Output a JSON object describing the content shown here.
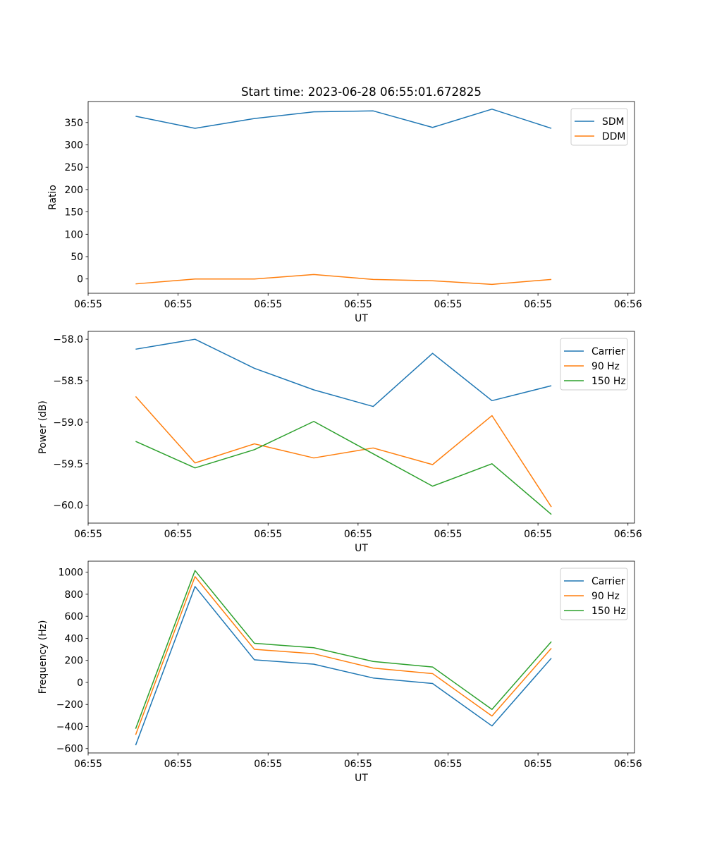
{
  "chart_data": [
    {
      "type": "line",
      "title": "Start time: 2023-06-28 06:55:01.672825",
      "xlabel": "UT",
      "ylabel": "Ratio",
      "x": [
        1,
        2,
        3,
        4,
        5,
        6,
        7,
        8
      ],
      "xlim": [
        0.2,
        9.4
      ],
      "xtick_positions": [
        0.2,
        1.715,
        3.23,
        4.745,
        6.26,
        7.775,
        9.29
      ],
      "xtick_labels": [
        "06:55",
        "06:55",
        "06:55",
        "06:55",
        "06:55",
        "06:55",
        "06:56"
      ],
      "ylim": [
        -32,
        397
      ],
      "yticks": [
        0,
        50,
        100,
        150,
        200,
        250,
        300,
        350
      ],
      "grid": false,
      "legend_position": "top-right",
      "series": [
        {
          "name": "SDM",
          "color": "#1f77b4",
          "values": [
            364,
            337,
            359,
            374,
            376,
            339,
            380,
            337
          ]
        },
        {
          "name": "DDM",
          "color": "#ff7f0e",
          "values": [
            -11,
            0,
            0,
            10,
            -1,
            -4,
            -12,
            -1
          ]
        }
      ]
    },
    {
      "type": "line",
      "title": "",
      "xlabel": "UT",
      "ylabel": "Power (dB)",
      "x": [
        1,
        2,
        3,
        4,
        5,
        6,
        7,
        8
      ],
      "xlim": [
        0.2,
        9.4
      ],
      "xtick_positions": [
        0.2,
        1.715,
        3.23,
        4.745,
        6.26,
        7.775,
        9.29
      ],
      "xtick_labels": [
        "06:55",
        "06:55",
        "06:55",
        "06:55",
        "06:55",
        "06:55",
        "06:56"
      ],
      "ylim": [
        -60.215,
        -57.905
      ],
      "yticks": [
        -60.0,
        -59.5,
        -59.0,
        -58.5,
        -58.0
      ],
      "ytick_labels": [
        "−60.0",
        "−59.5",
        "−59.0",
        "−58.5",
        "−58.0"
      ],
      "grid": false,
      "legend_position": "top-right",
      "series": [
        {
          "name": "Carrier",
          "color": "#1f77b4",
          "values": [
            -58.12,
            -58.0,
            -58.35,
            -58.61,
            -58.81,
            -58.17,
            -58.74,
            -58.56
          ]
        },
        {
          "name": "90 Hz",
          "color": "#ff7f0e",
          "values": [
            -58.69,
            -59.49,
            -59.26,
            -59.43,
            -59.31,
            -59.51,
            -58.92,
            -60.02
          ]
        },
        {
          "name": "150 Hz",
          "color": "#2ca02c",
          "values": [
            -59.23,
            -59.55,
            -59.33,
            -58.99,
            -59.38,
            -59.77,
            -59.5,
            -60.11
          ]
        }
      ]
    },
    {
      "type": "line",
      "title": "",
      "xlabel": "UT",
      "ylabel": "Frequency (Hz)",
      "x": [
        1,
        2,
        3,
        4,
        5,
        6,
        7,
        8
      ],
      "xlim": [
        0.2,
        9.4
      ],
      "xtick_positions": [
        0.2,
        1.715,
        3.23,
        4.745,
        6.26,
        7.775,
        9.29
      ],
      "xtick_labels": [
        "06:55",
        "06:55",
        "06:55",
        "06:55",
        "06:55",
        "06:55",
        "06:56"
      ],
      "ylim": [
        -640,
        1100
      ],
      "yticks": [
        -600,
        -400,
        -200,
        0,
        200,
        400,
        600,
        800,
        1000
      ],
      "ytick_labels": [
        "−600",
        "−400",
        "−200",
        "0",
        "200",
        "400",
        "600",
        "800",
        "1000"
      ],
      "grid": false,
      "legend_position": "top-right",
      "series": [
        {
          "name": "Carrier",
          "color": "#1f77b4",
          "values": [
            -570,
            870,
            205,
            165,
            40,
            -10,
            -395,
            220
          ]
        },
        {
          "name": "90 Hz",
          "color": "#ff7f0e",
          "values": [
            -475,
            960,
            300,
            260,
            130,
            80,
            -305,
            310
          ]
        },
        {
          "name": "150 Hz",
          "color": "#2ca02c",
          "values": [
            -420,
            1015,
            355,
            315,
            190,
            140,
            -245,
            370
          ]
        }
      ]
    }
  ]
}
